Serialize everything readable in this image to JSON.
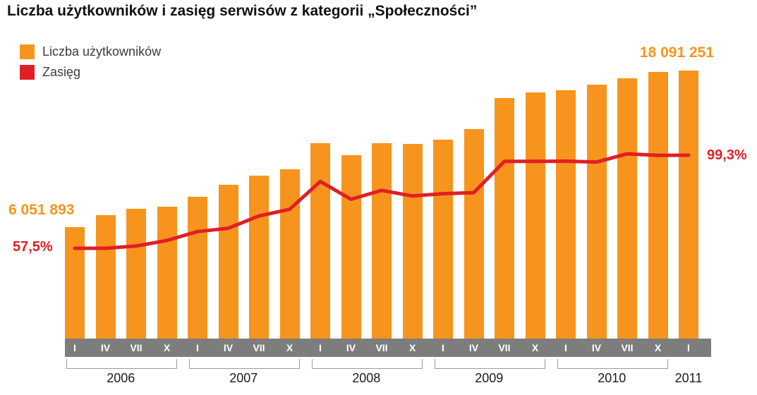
{
  "title": "Liczba użytkowników i zasięg serwisów z kategorii „Społeczności”",
  "legend": {
    "position": "top-left",
    "items": [
      {
        "label": "Liczba użytkowników",
        "color": "#F7941D",
        "swatch": "orange-square-swatch"
      },
      {
        "label": "Zasięg",
        "color": "#E01F26",
        "swatch": "red-square-swatch"
      }
    ]
  },
  "annotations": {
    "first_users_label": "6 051 893",
    "last_users_label": "18 091 251",
    "first_reach_label": "57,5%",
    "last_reach_label": "99,3%"
  },
  "x_axis": {
    "quarter_labels": [
      "I",
      "IV",
      "VII",
      "X",
      "I",
      "IV",
      "VII",
      "X",
      "I",
      "IV",
      "VII",
      "X",
      "I",
      "IV",
      "VII",
      "X",
      "I",
      "IV",
      "VII",
      "X",
      "I"
    ],
    "year_groups": [
      {
        "label": "2006",
        "quarters": 4
      },
      {
        "label": "2007",
        "quarters": 4
      },
      {
        "label": "2008",
        "quarters": 4
      },
      {
        "label": "2009",
        "quarters": 4
      },
      {
        "label": "2010",
        "quarters": 4
      },
      {
        "label": "2011",
        "quarters": 1
      }
    ]
  },
  "chart_data": {
    "type": "bar",
    "subtype": "bar-and-line-combo",
    "title": "Liczba użytkowników i zasięg serwisów z kategorii „Społeczności”",
    "xlabel": "",
    "ylabel": "",
    "grid": false,
    "y_axis_visible": false,
    "legend_position": "top-left",
    "categories": [
      "2006-I",
      "2006-IV",
      "2006-VII",
      "2006-X",
      "2007-I",
      "2007-IV",
      "2007-VII",
      "2007-X",
      "2008-I",
      "2008-IV",
      "2008-VII",
      "2008-X",
      "2009-I",
      "2009-IV",
      "2009-VII",
      "2009-X",
      "2010-I",
      "2010-IV",
      "2010-VII",
      "2010-X",
      "2011-I"
    ],
    "series": [
      {
        "name": "Liczba użytkowników",
        "type": "bar",
        "color": "#F7941D",
        "values": [
          6051893,
          6950000,
          7450000,
          7650000,
          8400000,
          9300000,
          10000000,
          10500000,
          12500000,
          11600000,
          12500000,
          12450000,
          12800000,
          13600000,
          16000000,
          16400000,
          16600000,
          17000000,
          17500000,
          18000000,
          18091251
        ]
      },
      {
        "name": "Zasięg",
        "type": "line",
        "color": "#E01F26",
        "unit": "%",
        "values": [
          57.5,
          57.5,
          58.5,
          61.0,
          65.0,
          66.5,
          72.0,
          75.0,
          87.5,
          79.5,
          83.5,
          81.0,
          82.0,
          82.5,
          96.5,
          96.5,
          96.6,
          96.2,
          99.9,
          99.2,
          99.3
        ]
      }
    ],
    "labeled_points": {
      "first_users": 6051893,
      "last_users": 18091251,
      "first_reach_pct": 57.5,
      "last_reach_pct": 99.3
    }
  }
}
